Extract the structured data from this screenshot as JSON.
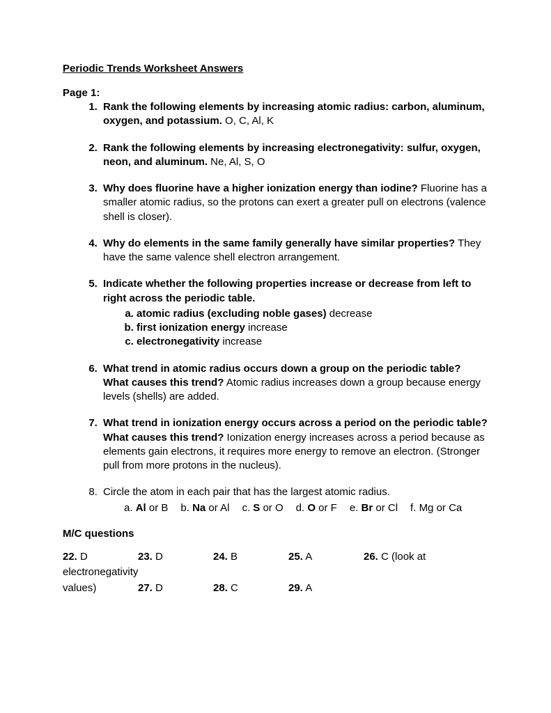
{
  "title": "Periodic Trends Worksheet Answers",
  "page_label": "Page 1:",
  "questions": [
    {
      "q": "Rank the following elements by increasing atomic radius: carbon, aluminum, oxygen, and potassium.",
      "a": " O, C, Al, K",
      "bold_li": true
    },
    {
      "q": "Rank the following elements by increasing electronegativity: sulfur, oxygen, neon, and aluminum.",
      "a": " Ne, Al, S, O",
      "bold_li": true
    },
    {
      "q": "Why does fluorine have a higher ionization energy than iodine?",
      "a": " Fluorine has a smaller atomic radius, so the protons can exert a greater pull on electrons (valence shell is closer).",
      "bold_li": true
    },
    {
      "q": "Why do elements in the same family generally have similar properties?",
      "a": " They have the same valence shell electron arrangement.",
      "bold_li": true
    },
    {
      "q": "Indicate whether the following properties increase or decrease from left to right across the periodic table.",
      "a": "",
      "bold_li": true,
      "sub": [
        {
          "q": "atomic radius (excluding noble gases)",
          "a": " decrease"
        },
        {
          "q": "first ionization energy",
          "a": " increase"
        },
        {
          "q": "electronegativity",
          "a": " increase"
        }
      ]
    },
    {
      "q": "What trend in atomic radius occurs down a group on the periodic table? What causes this trend?",
      "a": " Atomic radius increases down a group because energy levels (shells) are added.",
      "bold_li": true
    },
    {
      "q": "What trend in ionization energy occurs across a period on the periodic table? What causes this trend?",
      "a": " Ionization energy increases across a period because as elements gain electrons, it requires more energy to remove an electron. (Stronger pull from more protons in the nucleus).",
      "bold_li": true
    },
    {
      "q": "",
      "a": "Circle the atom in each pair that has the largest atomic radius.",
      "bold_li": false,
      "pairs": [
        {
          "label": "a. ",
          "bold": "Al",
          "rest": " or B"
        },
        {
          "label": "b. ",
          "bold": "Na",
          "rest": " or Al"
        },
        {
          "label": "c. ",
          "bold": "S",
          "rest": " or O"
        },
        {
          "label": "d. ",
          "bold": "O",
          "rest": " or F"
        },
        {
          "label": "e. ",
          "bold": "Br",
          "rest": " or Cl"
        },
        {
          "label": "f. ",
          "bold": "",
          "rest": "Mg or Ca"
        }
      ]
    }
  ],
  "mc_header": "M/C questions",
  "mc_row1": [
    {
      "num": "22.",
      "ans": " D"
    },
    {
      "num": "23.",
      "ans": " D"
    },
    {
      "num": "24.",
      "ans": " B"
    },
    {
      "num": "25.",
      "ans": " A"
    }
  ],
  "mc_row1_tail": {
    "num": "26.",
    "ans": " C  (look at electronegativity"
  },
  "mc_row2_lead": "values)",
  "mc_row2": [
    {
      "num": "27.",
      "ans": " D"
    },
    {
      "num": "28.",
      "ans": " C"
    },
    {
      "num": "29.",
      "ans": " A"
    }
  ]
}
